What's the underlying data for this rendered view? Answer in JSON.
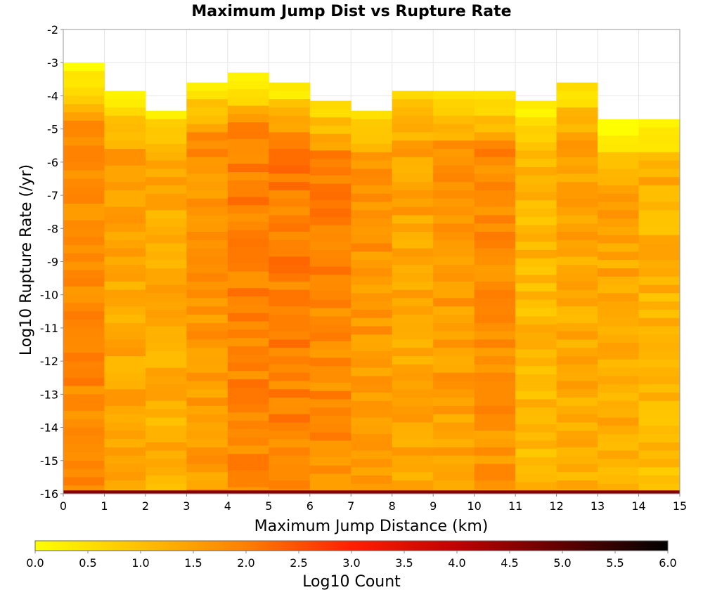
{
  "chart_data": {
    "type": "heatmap",
    "title": "Maximum Jump Dist vs Rupture Rate",
    "xlabel": "Maximum Jump Distance (km)",
    "ylabel": "Log10 Rupture Rate (/yr)",
    "xlim": [
      0,
      15
    ],
    "ylim": [
      -16,
      -2
    ],
    "x_ticks": [
      "0",
      "1",
      "2",
      "3",
      "4",
      "5",
      "6",
      "7",
      "8",
      "9",
      "10",
      "11",
      "12",
      "13",
      "14",
      "15"
    ],
    "y_ticks": [
      "-2",
      "-3",
      "-4",
      "-5",
      "-6",
      "-7",
      "-8",
      "-9",
      "-10",
      "-11",
      "-12",
      "-13",
      "-14",
      "-15",
      "-16"
    ],
    "x_bin_edges": [
      0,
      1,
      2,
      3,
      4,
      5,
      6,
      7,
      8,
      9,
      10,
      11,
      12,
      13,
      14,
      15
    ],
    "y_bin_width": 0.25,
    "grid": true,
    "z_label": "Log10 Count",
    "z_range": [
      0.0,
      6.0
    ],
    "z_ticks": [
      "0.0",
      "0.5",
      "1.0",
      "1.5",
      "2.0",
      "2.5",
      "3.0",
      "3.5",
      "4.0",
      "4.5",
      "5.0",
      "5.5",
      "6.0"
    ],
    "colormap": [
      "#ffff00",
      "#ffc000",
      "#ff7f00",
      "#ff2000",
      "#c00000",
      "#600000",
      "#000000"
    ],
    "columns": [
      {
        "x_range": [
          0,
          1
        ],
        "top": -3.0,
        "top_value": 0.1,
        "mid_value": 1.9,
        "low_value": 2.0
      },
      {
        "x_range": [
          1,
          2
        ],
        "top": -3.85,
        "top_value": 0.5,
        "mid_value": 1.6,
        "low_value": 1.5
      },
      {
        "x_range": [
          2,
          3
        ],
        "top": -4.45,
        "top_value": 0.5,
        "mid_value": 1.5,
        "low_value": 1.4
      },
      {
        "x_range": [
          3,
          4
        ],
        "top": -3.6,
        "top_value": 0.6,
        "mid_value": 1.9,
        "low_value": 1.7
      },
      {
        "x_range": [
          4,
          5
        ],
        "top": -3.3,
        "top_value": 0.1,
        "mid_value": 2.1,
        "low_value": 2.0
      },
      {
        "x_range": [
          5,
          6
        ],
        "top": -3.6,
        "top_value": 0.3,
        "mid_value": 2.2,
        "low_value": 2.0
      },
      {
        "x_range": [
          6,
          7
        ],
        "top": -4.15,
        "top_value": 0.6,
        "mid_value": 2.1,
        "low_value": 1.9
      },
      {
        "x_range": [
          7,
          8
        ],
        "top": -4.45,
        "top_value": 0.6,
        "mid_value": 1.9,
        "low_value": 1.6
      },
      {
        "x_range": [
          8,
          9
        ],
        "top": -3.85,
        "top_value": 0.8,
        "mid_value": 1.6,
        "low_value": 1.5
      },
      {
        "x_range": [
          9,
          10
        ],
        "top": -3.85,
        "top_value": 0.6,
        "mid_value": 1.8,
        "low_value": 1.6
      },
      {
        "x_range": [
          10,
          11
        ],
        "top": -3.85,
        "top_value": 0.3,
        "mid_value": 2.0,
        "low_value": 1.8
      },
      {
        "x_range": [
          11,
          12
        ],
        "top": -4.15,
        "top_value": 0.3,
        "mid_value": 1.3,
        "low_value": 1.2
      },
      {
        "x_range": [
          12,
          13
        ],
        "top": -3.6,
        "top_value": 0.6,
        "mid_value": 1.6,
        "low_value": 1.4
      },
      {
        "x_range": [
          13,
          14
        ],
        "top": -4.7,
        "top_value": 0.1,
        "mid_value": 1.6,
        "low_value": 1.4
      },
      {
        "x_range": [
          14,
          15
        ],
        "top": -4.7,
        "top_value": 0.1,
        "mid_value": 1.4,
        "low_value": 1.2
      }
    ],
    "gaps": [
      {
        "x_range": [
          11,
          12
        ],
        "y_range": [
          -4.45,
          -4.7
        ]
      }
    ],
    "bottom_row": {
      "y_range": [
        -16,
        -15.9
      ],
      "value": 4.6
    }
  }
}
